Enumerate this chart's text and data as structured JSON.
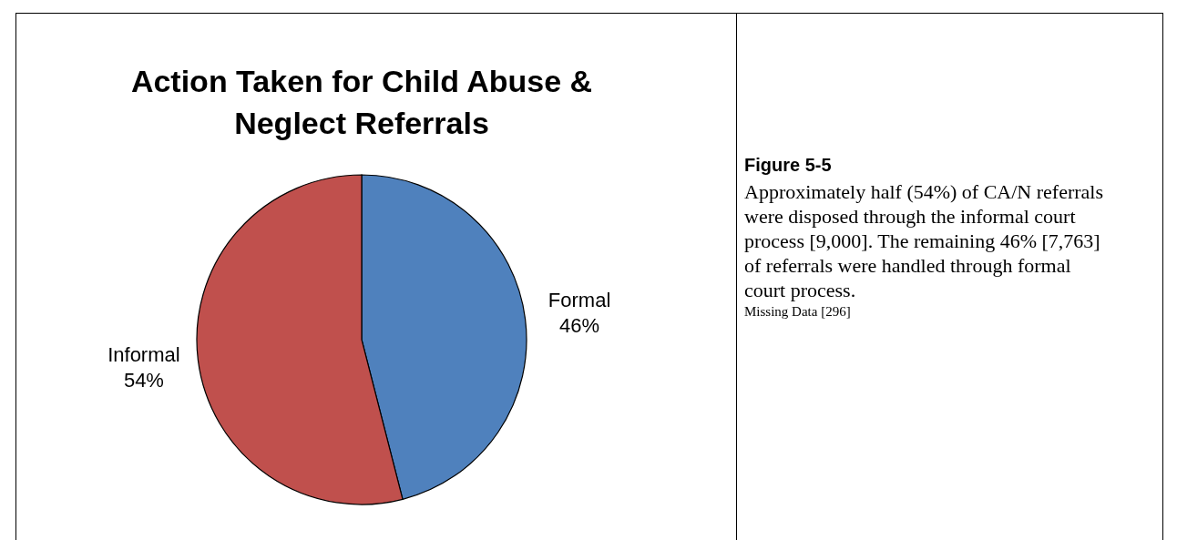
{
  "chart_data": {
    "type": "pie",
    "title": "Action Taken for Child Abuse & Neglect Referrals",
    "categories": [
      "Formal",
      "Informal"
    ],
    "values": [
      46,
      54
    ],
    "colors": [
      "#4f81bd",
      "#c0504d"
    ],
    "value_labels": [
      "46%",
      "54%"
    ],
    "annotations": [
      "Figure 5-5",
      "Approximately half (54%) of CA/N referrals were disposed through the informal court process [9,000]. The remaining 46% [7,763] of referrals were handled through formal court process.",
      "Missing Data [296]"
    ]
  }
}
